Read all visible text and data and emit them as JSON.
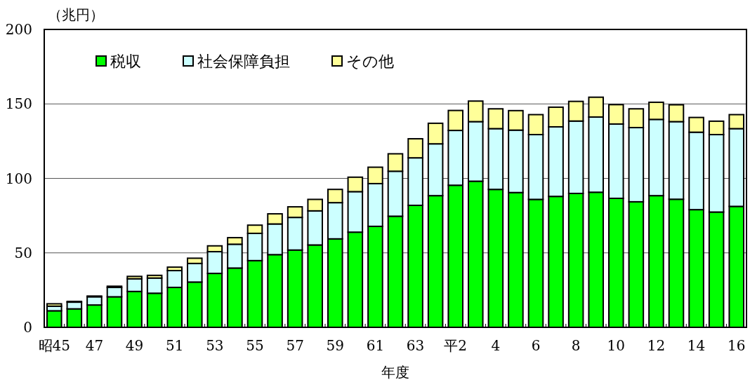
{
  "chart_data": {
    "type": "bar",
    "stacked": true,
    "ylabel": "（兆円）",
    "xlabel": "年度",
    "categories": [
      "昭45",
      null,
      "47",
      null,
      "49",
      null,
      "51",
      null,
      "53",
      null,
      "55",
      null,
      "57",
      null,
      "59",
      null,
      "61",
      null,
      "63",
      null,
      "平2",
      null,
      "4",
      null,
      "6",
      null,
      "8",
      null,
      "10",
      null,
      "12",
      null,
      "14",
      null,
      "16"
    ],
    "series": [
      {
        "name": "税収",
        "color": "#00ff00",
        "values": [
          11.1,
          12.4,
          15.0,
          20.5,
          24.1,
          22.9,
          26.8,
          30.4,
          36.2,
          39.8,
          44.8,
          48.8,
          51.9,
          55.3,
          59.4,
          63.9,
          67.8,
          74.6,
          81.9,
          88.4,
          95.4,
          98.1,
          92.6,
          90.5,
          85.9,
          87.9,
          89.9,
          90.7,
          86.6,
          84.3,
          88.4,
          86.0,
          79.0,
          77.4,
          81.2
        ]
      },
      {
        "name": "社会保障負担",
        "color": "#ccffff",
        "values": [
          3.1,
          4.5,
          5.5,
          6.3,
          8.5,
          10.2,
          11.3,
          12.5,
          14.6,
          16.0,
          18.3,
          20.6,
          21.9,
          22.9,
          24.3,
          27.2,
          28.7,
          30.2,
          31.9,
          34.8,
          36.8,
          40.0,
          40.8,
          41.9,
          43.5,
          46.7,
          48.6,
          50.5,
          49.9,
          49.8,
          51.2,
          52.1,
          52.0,
          52.0,
          52.2
        ]
      },
      {
        "name": "その他",
        "color": "#ffff99",
        "values": [
          1.6,
          0.5,
          0.5,
          0.8,
          1.6,
          1.8,
          2.3,
          3.5,
          3.9,
          4.4,
          5.5,
          6.8,
          7.1,
          7.7,
          8.9,
          9.7,
          11.0,
          11.7,
          12.8,
          13.8,
          13.4,
          13.8,
          13.3,
          13.1,
          13.4,
          13.2,
          13.2,
          13.3,
          13.0,
          12.6,
          11.5,
          11.3,
          9.9,
          9.0,
          9.4
        ]
      }
    ],
    "ylim": [
      0,
      200
    ],
    "yticks": [
      0,
      50,
      100,
      150,
      200
    ],
    "grid": "y",
    "legend": "top left"
  }
}
